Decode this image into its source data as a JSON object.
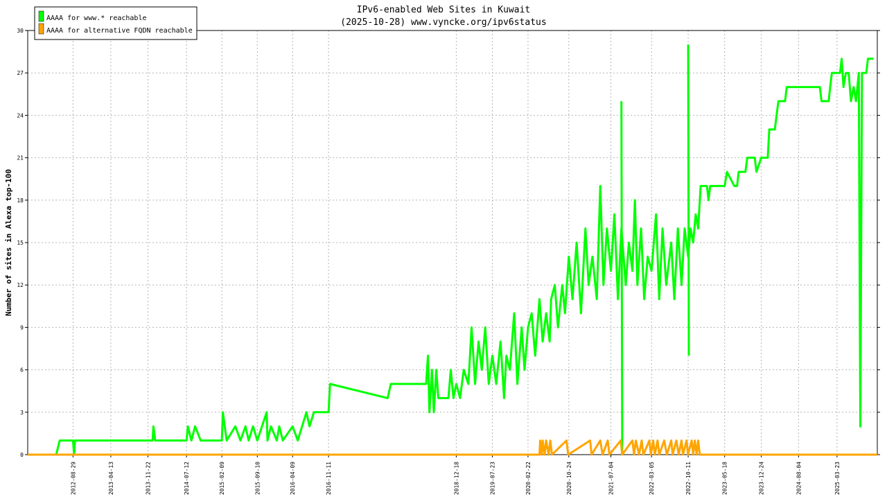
{
  "chart_data": {
    "type": "line",
    "title": "IPv6-enabled Web Sites in Kuwait",
    "subtitle": "(2025-10-28) www.vyncke.org/ipv6status",
    "ylabel": "Number of sites in Alexa top-100",
    "xlabel": "",
    "ylim": [
      0,
      30
    ],
    "yticks": [
      0,
      3,
      6,
      9,
      12,
      15,
      18,
      21,
      24,
      27,
      30
    ],
    "xlim": [
      "2011-12-01",
      "2025-11-20"
    ],
    "xticks": [
      "2012-08-29",
      "2013-04-13",
      "2013-11-22",
      "2014-07-12",
      "2015-02-09",
      "2015-09-10",
      "2016-04-09",
      "2016-11-11",
      "2018-12-18",
      "2019-07-23",
      "2020-02-22",
      "2020-10-24",
      "2021-07-04",
      "2022-03-05",
      "2022-10-11",
      "2023-05-18",
      "2023-12-24",
      "2024-08-04",
      "2025-03-23"
    ],
    "grid": true,
    "legend_position": "top-left",
    "series": [
      {
        "name": "AAAA for www.* reachable",
        "color": "#00ff00",
        "points": [
          [
            "2012-05-20",
            0
          ],
          [
            "2012-06-10",
            1
          ],
          [
            "2012-08-29",
            1
          ],
          [
            "2012-09-05",
            0
          ],
          [
            "2012-09-10",
            1
          ],
          [
            "2013-12-20",
            1
          ],
          [
            "2013-12-25",
            2
          ],
          [
            "2014-01-05",
            1
          ],
          [
            "2014-07-12",
            1
          ],
          [
            "2014-07-20",
            2
          ],
          [
            "2014-08-10",
            1
          ],
          [
            "2014-09-01",
            2
          ],
          [
            "2014-10-05",
            1
          ],
          [
            "2015-02-09",
            1
          ],
          [
            "2015-02-15",
            3
          ],
          [
            "2015-03-10",
            1
          ],
          [
            "2015-05-01",
            2
          ],
          [
            "2015-06-01",
            1
          ],
          [
            "2015-07-01",
            2
          ],
          [
            "2015-07-20",
            1
          ],
          [
            "2015-08-15",
            2
          ],
          [
            "2015-09-10",
            1
          ],
          [
            "2015-11-05",
            3
          ],
          [
            "2015-11-10",
            1
          ],
          [
            "2015-12-01",
            2
          ],
          [
            "2016-01-05",
            1
          ],
          [
            "2016-01-20",
            2
          ],
          [
            "2016-02-10",
            1
          ],
          [
            "2016-04-09",
            2
          ],
          [
            "2016-05-10",
            1
          ],
          [
            "2016-07-01",
            3
          ],
          [
            "2016-07-20",
            2
          ],
          [
            "2016-08-15",
            3
          ],
          [
            "2016-11-11",
            3
          ],
          [
            "2016-11-20",
            5
          ],
          [
            "2017-11-01",
            4
          ],
          [
            "2017-11-20",
            5
          ],
          [
            "2018-06-20",
            5
          ],
          [
            "2018-07-01",
            7
          ],
          [
            "2018-07-10",
            3
          ],
          [
            "2018-07-25",
            6
          ],
          [
            "2018-08-05",
            3
          ],
          [
            "2018-08-20",
            6
          ],
          [
            "2018-09-01",
            4
          ],
          [
            "2018-11-01",
            4
          ],
          [
            "2018-11-15",
            6
          ],
          [
            "2018-12-01",
            4
          ],
          [
            "2018-12-18",
            5
          ],
          [
            "2019-01-10",
            4
          ],
          [
            "2019-02-01",
            6
          ],
          [
            "2019-03-01",
            5
          ],
          [
            "2019-03-20",
            9
          ],
          [
            "2019-04-10",
            5
          ],
          [
            "2019-05-01",
            8
          ],
          [
            "2019-05-20",
            6
          ],
          [
            "2019-06-10",
            9
          ],
          [
            "2019-07-01",
            5
          ],
          [
            "2019-07-23",
            7
          ],
          [
            "2019-08-15",
            5
          ],
          [
            "2019-09-10",
            8
          ],
          [
            "2019-10-01",
            4
          ],
          [
            "2019-10-15",
            7
          ],
          [
            "2019-11-05",
            6
          ],
          [
            "2019-12-01",
            10
          ],
          [
            "2019-12-20",
            5
          ],
          [
            "2020-01-15",
            9
          ],
          [
            "2020-02-01",
            6
          ],
          [
            "2020-02-22",
            9
          ],
          [
            "2020-03-15",
            10
          ],
          [
            "2020-04-05",
            7
          ],
          [
            "2020-05-01",
            11
          ],
          [
            "2020-05-20",
            8
          ],
          [
            "2020-06-10",
            10
          ],
          [
            "2020-07-01",
            8
          ],
          [
            "2020-07-10",
            11
          ],
          [
            "2020-08-01",
            12
          ],
          [
            "2020-08-20",
            9
          ],
          [
            "2020-09-15",
            12
          ],
          [
            "2020-10-01",
            10
          ],
          [
            "2020-10-24",
            14
          ],
          [
            "2020-11-15",
            11
          ],
          [
            "2020-12-10",
            15
          ],
          [
            "2021-01-05",
            10
          ],
          [
            "2021-02-01",
            16
          ],
          [
            "2021-02-20",
            12
          ],
          [
            "2021-03-15",
            14
          ],
          [
            "2021-04-10",
            11
          ],
          [
            "2021-05-01",
            19
          ],
          [
            "2021-05-20",
            12
          ],
          [
            "2021-06-10",
            16
          ],
          [
            "2021-07-04",
            13
          ],
          [
            "2021-07-25",
            17
          ],
          [
            "2021-08-15",
            11
          ],
          [
            "2021-09-05",
            16
          ],
          [
            "2021-10-01",
            12
          ],
          [
            "2021-10-20",
            15
          ],
          [
            "2021-11-10",
            13
          ],
          [
            "2021-11-25",
            18
          ],
          [
            "2021-12-10",
            12
          ],
          [
            "2022-01-01",
            16
          ],
          [
            "2022-01-20",
            11
          ],
          [
            "2022-02-10",
            14
          ],
          [
            "2022-03-05",
            13
          ],
          [
            "2022-04-01",
            17
          ],
          [
            "2022-04-20",
            11
          ],
          [
            "2022-05-10",
            16
          ],
          [
            "2022-06-01",
            12
          ],
          [
            "2022-07-01",
            15
          ],
          [
            "2022-07-20",
            11
          ],
          [
            "2022-08-10",
            16
          ],
          [
            "2022-09-01",
            12
          ],
          [
            "2022-09-20",
            16
          ],
          [
            "2022-10-11",
            14
          ],
          [
            "2022-10-25",
            16
          ],
          [
            "2022-11-10",
            15
          ],
          [
            "2022-11-25",
            17
          ],
          [
            "2022-12-10",
            16
          ],
          [
            "2022-12-25",
            19
          ],
          [
            "2023-02-01",
            19
          ],
          [
            "2023-02-10",
            18
          ],
          [
            "2023-02-20",
            19
          ],
          [
            "2023-05-18",
            19
          ],
          [
            "2023-06-01",
            20
          ],
          [
            "2023-07-15",
            19
          ],
          [
            "2023-08-01",
            19
          ],
          [
            "2023-08-10",
            20
          ],
          [
            "2023-09-20",
            20
          ],
          [
            "2023-10-01",
            21
          ],
          [
            "2023-11-15",
            21
          ],
          [
            "2023-11-25",
            20
          ],
          [
            "2023-12-24",
            21
          ],
          [
            "2024-02-01",
            21
          ],
          [
            "2024-02-10",
            23
          ],
          [
            "2024-03-15",
            23
          ],
          [
            "2024-03-25",
            24
          ],
          [
            "2024-04-05",
            25
          ],
          [
            "2024-05-15",
            25
          ],
          [
            "2024-05-25",
            26
          ],
          [
            "2024-12-10",
            26
          ],
          [
            "2024-12-20",
            25
          ],
          [
            "2025-02-01",
            25
          ],
          [
            "2025-02-10",
            26
          ],
          [
            "2025-02-20",
            27
          ],
          [
            "2025-03-23",
            27
          ],
          [
            "2025-04-10",
            27
          ],
          [
            "2025-04-20",
            28
          ],
          [
            "2025-05-01",
            26
          ],
          [
            "2025-05-15",
            27
          ],
          [
            "2025-06-01",
            27
          ],
          [
            "2025-06-15",
            25
          ],
          [
            "2025-07-01",
            26
          ],
          [
            "2025-07-15",
            25
          ],
          [
            "2025-08-01",
            27
          ],
          [
            "2025-08-10",
            2
          ],
          [
            "2025-08-20",
            27
          ],
          [
            "2025-09-15",
            27
          ],
          [
            "2025-09-25",
            28
          ],
          [
            "2025-10-28",
            28
          ]
        ],
        "spikes": [
          [
            "2021-09-05",
            25
          ],
          [
            "2021-09-10",
            0
          ],
          [
            "2022-10-11",
            29
          ],
          [
            "2022-10-15",
            7
          ]
        ]
      },
      {
        "name": "AAAA for alternative FQDN reachable",
        "color": "#ffa500",
        "points": [
          [
            "2011-12-01",
            0
          ],
          [
            "2020-05-01",
            0
          ],
          [
            "2020-05-05",
            1
          ],
          [
            "2020-05-15",
            0
          ],
          [
            "2020-05-20",
            1
          ],
          [
            "2020-06-01",
            0
          ],
          [
            "2020-06-10",
            1
          ],
          [
            "2020-06-25",
            0
          ],
          [
            "2020-07-05",
            1
          ],
          [
            "2020-07-15",
            0
          ],
          [
            "2020-10-10",
            1
          ],
          [
            "2020-10-20",
            0
          ],
          [
            "2021-03-01",
            1
          ],
          [
            "2021-03-10",
            0
          ],
          [
            "2021-05-01",
            1
          ],
          [
            "2021-05-15",
            0
          ],
          [
            "2021-06-15",
            1
          ],
          [
            "2021-06-25",
            0
          ],
          [
            "2021-09-01",
            1
          ],
          [
            "2021-09-10",
            0
          ],
          [
            "2021-11-10",
            1
          ],
          [
            "2021-11-20",
            0
          ],
          [
            "2021-12-01",
            1
          ],
          [
            "2021-12-20",
            0
          ],
          [
            "2022-01-05",
            1
          ],
          [
            "2022-01-15",
            0
          ],
          [
            "2022-02-20",
            1
          ],
          [
            "2022-03-01",
            0
          ],
          [
            "2022-03-15",
            1
          ],
          [
            "2022-03-25",
            0
          ],
          [
            "2022-04-10",
            1
          ],
          [
            "2022-04-20",
            0
          ],
          [
            "2022-05-20",
            1
          ],
          [
            "2022-06-05",
            0
          ],
          [
            "2022-07-01",
            1
          ],
          [
            "2022-07-10",
            0
          ],
          [
            "2022-08-01",
            1
          ],
          [
            "2022-08-15",
            0
          ],
          [
            "2022-09-01",
            1
          ],
          [
            "2022-09-10",
            0
          ],
          [
            "2022-10-01",
            1
          ],
          [
            "2022-10-10",
            0
          ],
          [
            "2022-11-01",
            1
          ],
          [
            "2022-11-10",
            0
          ],
          [
            "2022-11-20",
            1
          ],
          [
            "2022-12-01",
            0
          ],
          [
            "2022-12-10",
            1
          ],
          [
            "2022-12-20",
            0
          ],
          [
            "2025-11-20",
            0
          ]
        ]
      }
    ]
  }
}
